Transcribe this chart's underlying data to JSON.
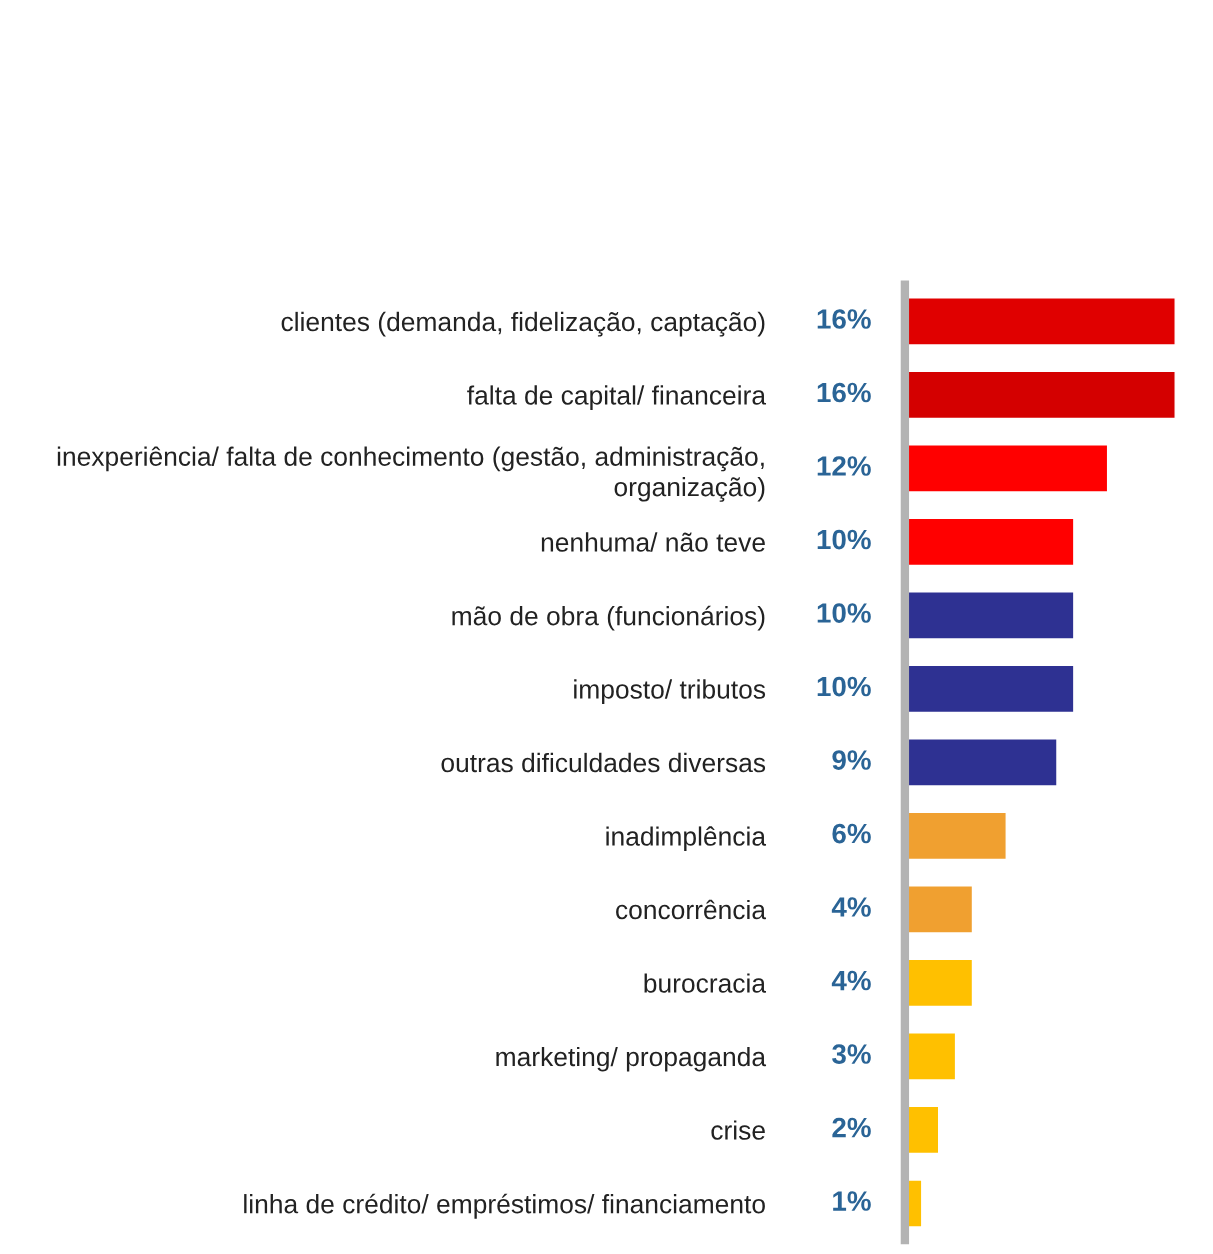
{
  "chart_data": {
    "type": "bar",
    "orientation": "horizontal",
    "categories": [
      "clientes (demanda, fidelização, captação)",
      "falta de capital/ financeira",
      "inexperiência/ falta de conhecimento (gestão, administração,\norganização)",
      "nenhuma/ não teve",
      "mão de obra (funcionários)",
      "imposto/ tributos",
      "outras dificuldades diversas",
      "inadimplência",
      "concorrência",
      "burocracia",
      "marketing/ propaganda",
      "crise",
      "linha de crédito/ empréstimos/ financiamento"
    ],
    "values": [
      16,
      16,
      12,
      10,
      10,
      10,
      9,
      6,
      4,
      4,
      3,
      2,
      1
    ],
    "value_labels": [
      "16%",
      "16%",
      "12%",
      "10%",
      "10%",
      "10%",
      "9%",
      "6%",
      "4%",
      "4%",
      "3%",
      "2%",
      "1%"
    ],
    "colors": [
      "#e00000",
      "#d40000",
      "#ff0000",
      "#ff0000",
      "#2e3192",
      "#2e3192",
      "#2e3192",
      "#f0a030",
      "#f0a030",
      "#ffc000",
      "#ffc000",
      "#ffc000",
      "#ffc000"
    ]
  }
}
